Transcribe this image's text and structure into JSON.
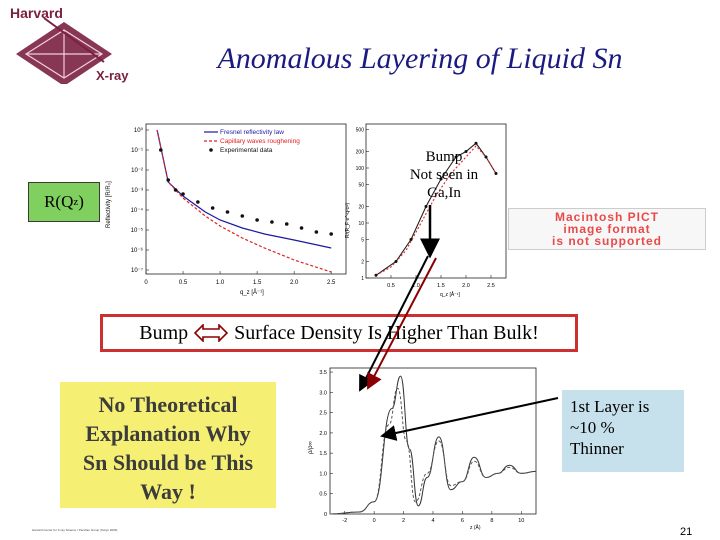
{
  "slide": {
    "title": "Anomalous Layering of Liquid Sn",
    "page_number": "21",
    "footer": "Harvard Center for X-ray Science / Pershan Group (Tokyo 2006)"
  },
  "logo": {
    "line1": "Harvard",
    "line2": "X-ray",
    "color": "#7a2040",
    "icon": "shield-shape-icon"
  },
  "labels": {
    "rq_main": "R(Q",
    "rq_sub": "z",
    "rq_end": ")",
    "bump_note": [
      "Bump",
      "Not seen in",
      "Ga,In"
    ],
    "pict_line1": "Macintosh PICT",
    "pict_line2": "image format",
    "pict_line3": "is not supported",
    "statement_left": "Bump",
    "statement_right": "Surface Density Is Higher Than Bulk!",
    "no_theory": [
      "No Theoretical",
      "Explanation Why",
      "Sn Should be This",
      "Way !"
    ],
    "layer": [
      "1st Layer is",
      "~10  %",
      "Thinner"
    ]
  },
  "colors": {
    "title": "#1a1a80",
    "rq_bg": "#80d060",
    "statement_border": "#cc3030",
    "no_theory_bg": "#f5f074",
    "layer_bg": "#c6e1ec",
    "pict_text": "#e84a4a",
    "arrow_dark_red": "#8b0000",
    "fresnel": "#1a1aa0",
    "capillary": "#e02020"
  },
  "chart_data": [
    {
      "type": "line",
      "ylabel": "Reflectivity [R/R₀]",
      "xlabel": "q_z [Å⁻¹]",
      "x_ticks": [
        "0",
        "0.5",
        "1.0",
        "1.5",
        "2.0",
        "2.5"
      ],
      "y_ticks": [
        "10⁰",
        "10⁻¹",
        "10⁻²",
        "10⁻³",
        "10⁻⁴",
        "10⁻⁵",
        "10⁻⁶",
        "10⁻⁷"
      ],
      "xlim": [
        0,
        2.7
      ],
      "ylim_log10": [
        -7.2,
        0.3
      ],
      "legend": [
        "Fresnel reflectivity law",
        "Capillary waves roughening",
        "Experimental data"
      ],
      "legend_position": "top-right",
      "series": [
        {
          "name": "Fresnel reflectivity law",
          "x": [
            0.15,
            0.3,
            0.5,
            0.8,
            1.0,
            1.3,
            1.6,
            2.0,
            2.5
          ],
          "log10_y": [
            0.0,
            -2.6,
            -3.3,
            -4.1,
            -4.5,
            -4.9,
            -5.2,
            -5.5,
            -5.9
          ]
        },
        {
          "name": "Capillary waves roughening",
          "x": [
            0.15,
            0.3,
            0.5,
            0.8,
            1.0,
            1.3,
            1.6,
            2.0,
            2.5
          ],
          "log10_y": [
            0.0,
            -2.6,
            -3.4,
            -4.3,
            -4.8,
            -5.4,
            -5.9,
            -6.5,
            -7.1
          ]
        },
        {
          "name": "Experimental data",
          "x": [
            0.2,
            0.3,
            0.4,
            0.5,
            0.7,
            0.9,
            1.1,
            1.3,
            1.5,
            1.7,
            1.9,
            2.1,
            2.3,
            2.5
          ],
          "log10_y": [
            -1.0,
            -2.5,
            -3.0,
            -3.2,
            -3.6,
            -3.9,
            -4.1,
            -4.3,
            -4.5,
            -4.6,
            -4.7,
            -4.9,
            -5.1,
            -5.2
          ]
        }
      ]
    },
    {
      "type": "line",
      "ylabel": "R/(R_F e^-q²σ²)",
      "xlabel": "q_z [Å⁻¹]",
      "x_ticks": [
        "0.5",
        "1.0",
        "1.5",
        "2.0",
        "2.5"
      ],
      "y_ticks": [
        "1",
        "2",
        "5",
        "10",
        "20",
        "50",
        "100",
        "200",
        "500"
      ],
      "xlim": [
        0,
        2.8
      ],
      "ylim_log10": [
        0,
        2.8
      ],
      "series": [
        {
          "name": "",
          "x": [
            0.2,
            0.6,
            0.9,
            1.2,
            1.5,
            1.8,
            2.0,
            2.2,
            2.4,
            2.6
          ],
          "log10_y": [
            0.05,
            0.3,
            0.7,
            1.3,
            1.8,
            2.2,
            2.3,
            2.45,
            2.2,
            1.9
          ]
        },
        {
          "name": "",
          "x": [
            0.2,
            0.5,
            0.8,
            1.1,
            1.4,
            1.7,
            2.0,
            2.2,
            2.4,
            2.6
          ],
          "log10_y": [
            0.05,
            0.2,
            0.5,
            1.0,
            1.5,
            1.9,
            2.2,
            2.4,
            2.2,
            1.9
          ]
        }
      ]
    },
    {
      "type": "line",
      "ylabel": "ρ/ρ∞",
      "xlabel": "z (Å)",
      "x_ticks": [
        "-2",
        "0",
        "2",
        "4",
        "6",
        "8",
        "10"
      ],
      "y_ticks": [
        "0",
        "0.5",
        "1.0",
        "1.5",
        "2.0",
        "2.5",
        "3.0",
        "3.5"
      ],
      "xlim": [
        -3,
        11
      ],
      "ylim": [
        0,
        3.6
      ],
      "series": [
        {
          "name": "",
          "x": [
            -3,
            -1,
            0,
            1.2,
            1.8,
            2.4,
            3.0,
            3.6,
            4.4,
            5.2,
            6.0,
            6.8,
            7.6,
            8.4,
            9.2,
            10,
            11
          ],
          "y": [
            0,
            0.05,
            0.3,
            2.6,
            3.4,
            1.6,
            0.2,
            0.9,
            1.9,
            0.6,
            0.8,
            1.4,
            0.9,
            1.0,
            1.2,
            1.0,
            1.05
          ]
        },
        {
          "name": "",
          "x": [
            -3,
            -1,
            0,
            1.0,
            1.6,
            2.2,
            2.8,
            3.6,
            4.4,
            5.2,
            6.0,
            6.8,
            7.6,
            8.4,
            9.2,
            10,
            11
          ],
          "y": [
            0,
            0.05,
            0.3,
            2.2,
            3.1,
            1.8,
            0.3,
            1.0,
            1.8,
            0.7,
            0.8,
            1.3,
            0.9,
            1.0,
            1.15,
            1.0,
            1.05
          ]
        }
      ]
    }
  ]
}
